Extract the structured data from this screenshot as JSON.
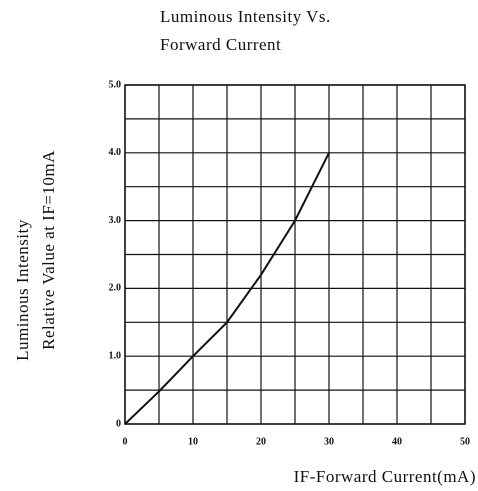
{
  "chart_data": {
    "type": "line",
    "title": [
      "Luminous Intensity Vs.",
      "Forward Current"
    ],
    "y_label": [
      "Luminous Intensity",
      "Relative Value at IF=10mA"
    ],
    "x_label": "IF-Forward Current(mA)",
    "x": [
      0,
      5,
      10,
      15,
      20,
      25,
      30
    ],
    "series": [
      {
        "name": null,
        "color": "#111111",
        "values": [
          0,
          0.48,
          1.0,
          1.5,
          2.2,
          3.0,
          4.0
        ]
      }
    ],
    "xlim": [
      0,
      50
    ],
    "ylim": [
      0,
      5
    ],
    "xticks": [
      0,
      10,
      20,
      30,
      40,
      50
    ],
    "yticks": [
      0,
      {
        "value": 1,
        "label": "1.0"
      },
      {
        "value": 2,
        "label": "2.0"
      },
      {
        "value": 3,
        "label": "3.0"
      },
      {
        "value": 4,
        "label": "4.0"
      },
      {
        "value": 5,
        "label": "5.0"
      }
    ],
    "xminorticks": [
      5,
      15,
      25,
      35,
      45
    ],
    "yminorticks": [
      0.5,
      1.5,
      2.5,
      3.5,
      4.5
    ],
    "grid": true
  }
}
